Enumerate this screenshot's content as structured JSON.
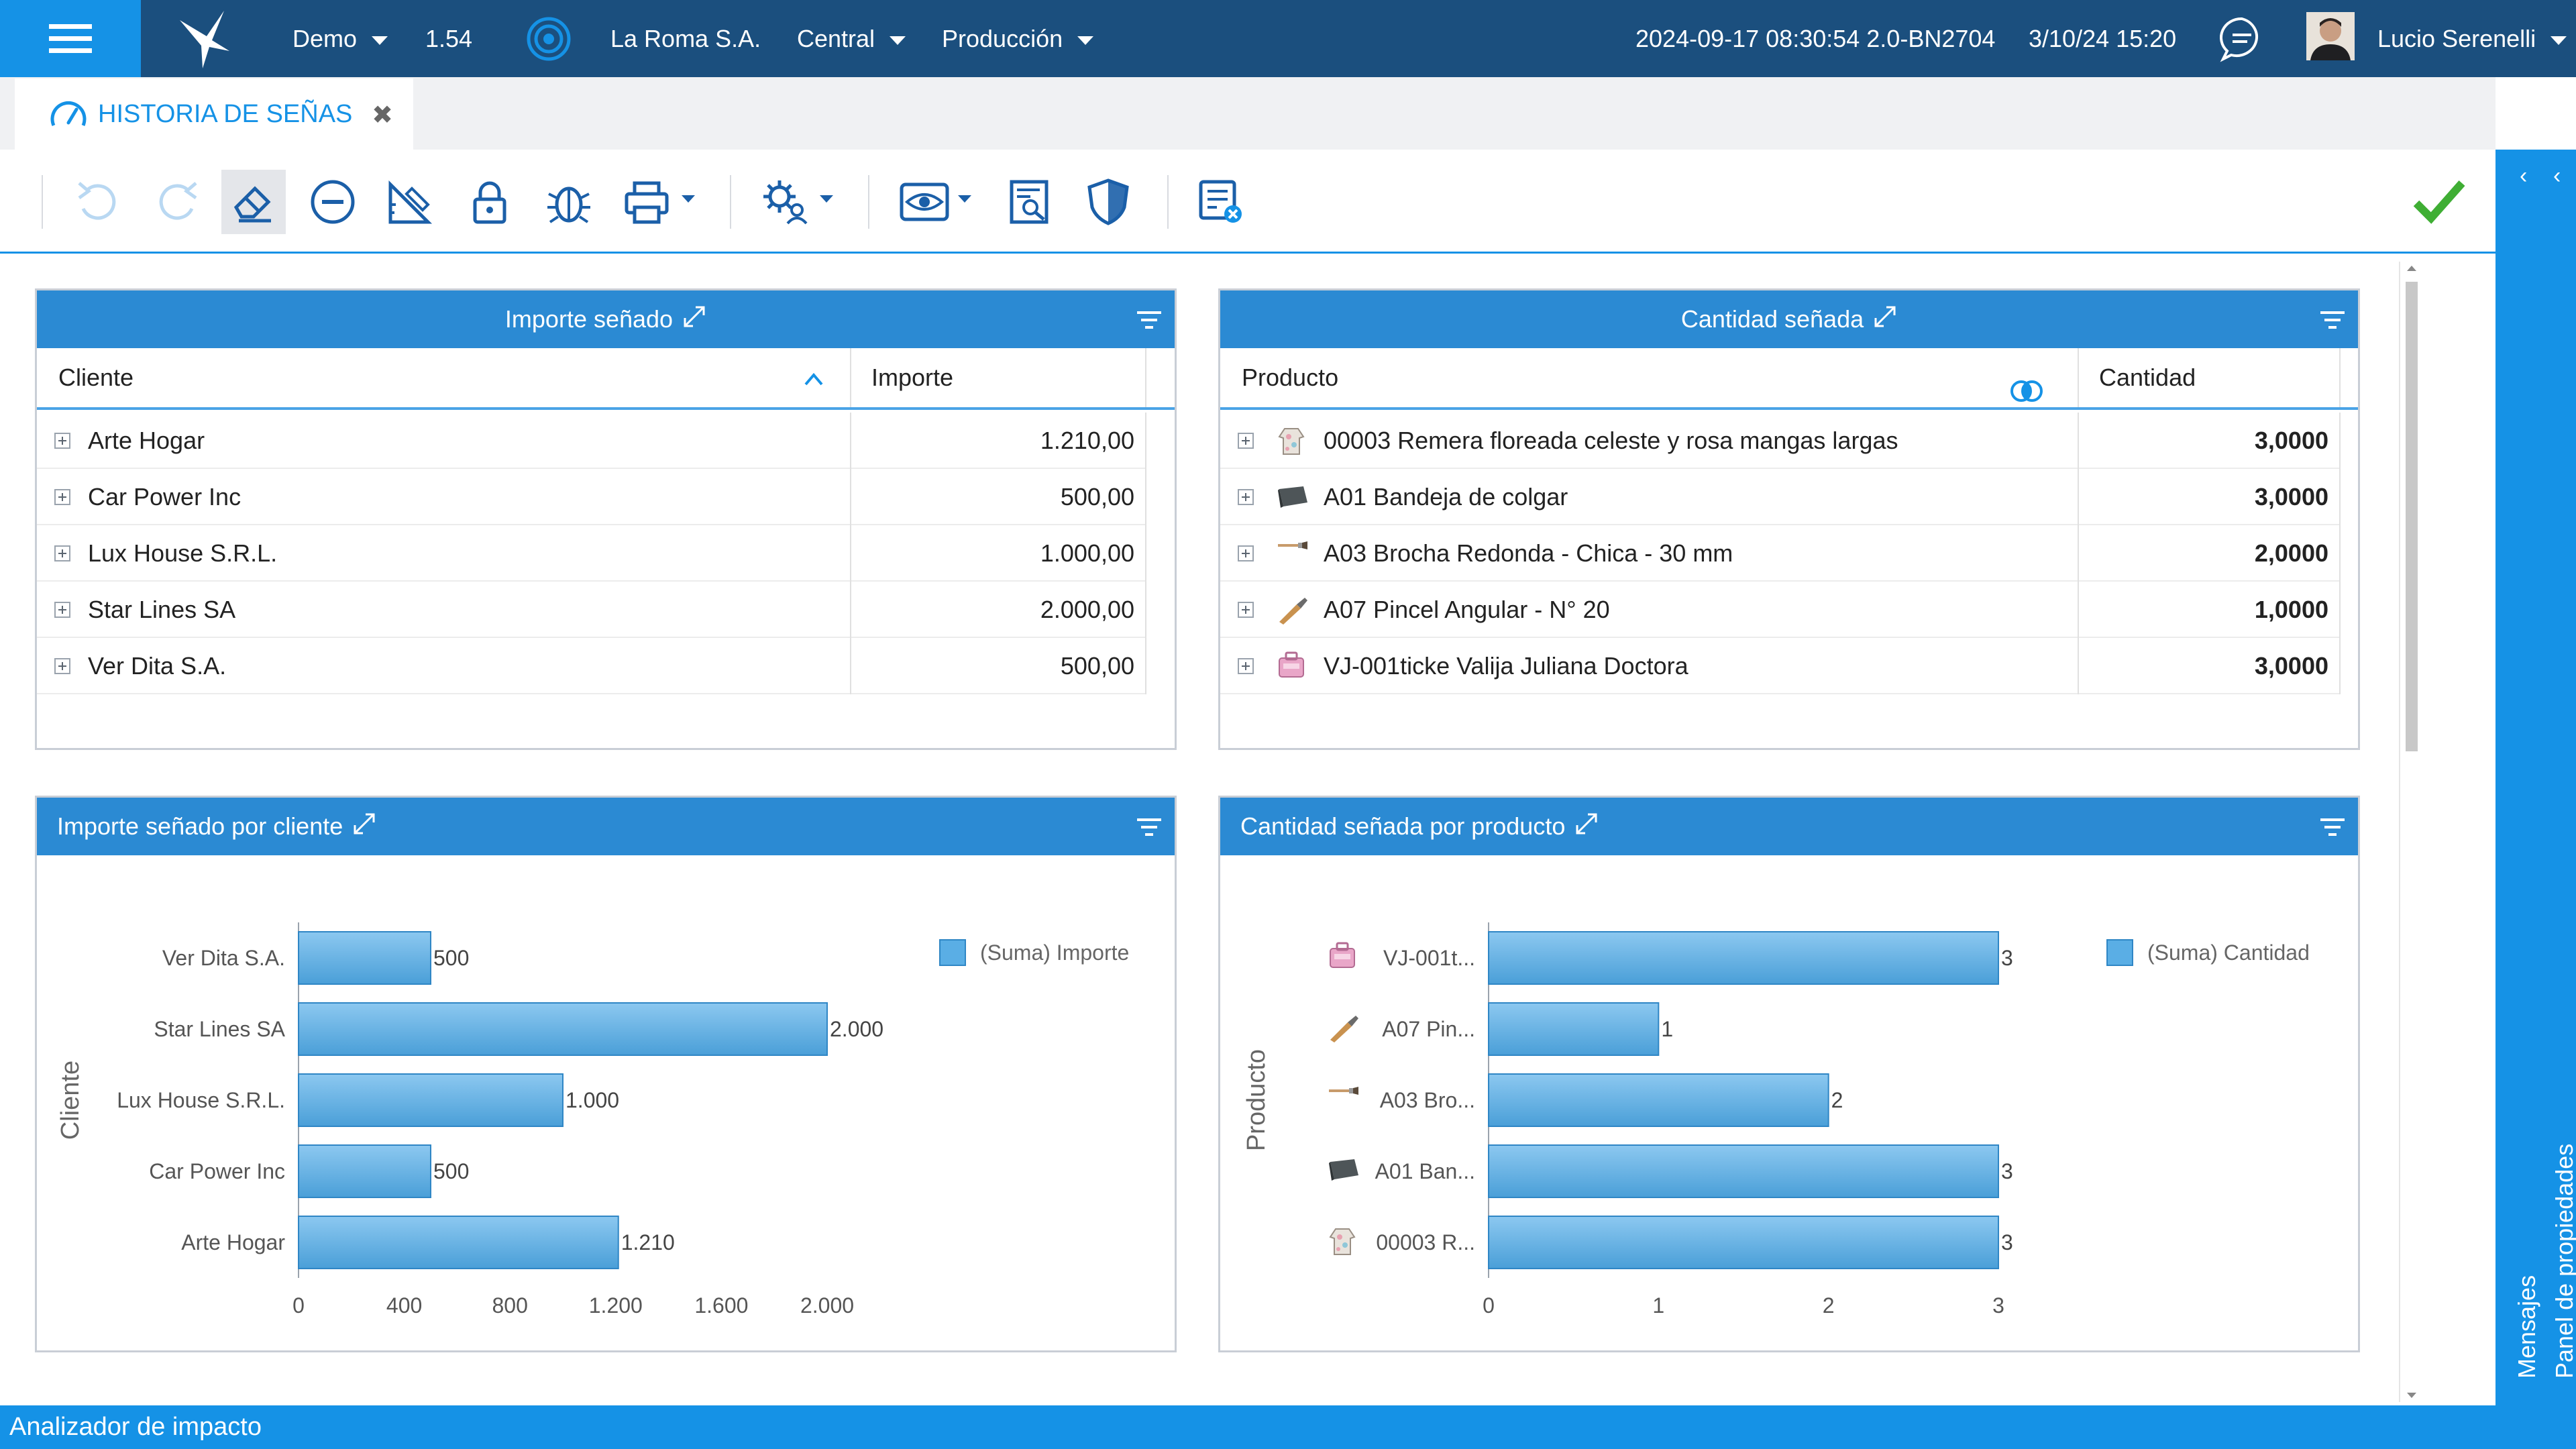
{
  "topbar": {
    "env": "Demo",
    "version": "1.54",
    "company": "La Roma S.A.",
    "branch": "Central",
    "area": "Producción",
    "build": "2024-09-17 08:30:54 2.0-BN2704",
    "datetime": "3/10/24 15:20",
    "user": "Lucio Serenelli"
  },
  "tab": {
    "title": "HISTORIA DE SEÑAS"
  },
  "toolbar": {
    "icons": [
      "undo-icon",
      "redo-icon",
      "eraser-icon",
      "minus-circle-icon",
      "ruler-pencil-icon",
      "lock-icon",
      "bug-icon",
      "printer-icon",
      "gear-people-icon",
      "eye-icon",
      "search-document-icon",
      "shield-icon",
      "list-close-icon",
      "checkmark-icon"
    ],
    "accent": "#1b5fa8"
  },
  "right_panel": {
    "properties_label": "Panel de propiedades",
    "messages_label": "Mensajes"
  },
  "statusbar": {
    "label": "Analizador de impacto"
  },
  "colors": {
    "topbar": "#1b4f7e",
    "accent": "#1592e6",
    "panel_header": "#2b8ad3",
    "bar": "#5aaee5",
    "ok": "#3fae34"
  },
  "importe_table": {
    "title": "Importe señado",
    "columns": [
      "Cliente",
      "Importe"
    ],
    "rows": [
      {
        "cliente": "Arte Hogar",
        "importe": "1.210,00"
      },
      {
        "cliente": "Car Power Inc",
        "importe": "500,00"
      },
      {
        "cliente": "Lux House S.R.L.",
        "importe": "1.000,00"
      },
      {
        "cliente": "Star Lines SA",
        "importe": "2.000,00"
      },
      {
        "cliente": "Ver Dita S.A.",
        "importe": "500,00"
      }
    ]
  },
  "cantidad_table": {
    "title": "Cantidad señada",
    "columns": [
      "Producto",
      "Cantidad"
    ],
    "rows": [
      {
        "producto": "00003 Remera floreada celeste y rosa mangas largas",
        "cantidad": "3,0000"
      },
      {
        "producto": "A01 Bandeja de colgar",
        "cantidad": "3,0000"
      },
      {
        "producto": "A03 Brocha Redonda - Chica - 30 mm",
        "cantidad": "2,0000"
      },
      {
        "producto": "A07 Pincel Angular - N° 20",
        "cantidad": "1,0000"
      },
      {
        "producto": "VJ-001ticke Valija Juliana Doctora",
        "cantidad": "3,0000"
      }
    ]
  },
  "chart_data": [
    {
      "type": "bar",
      "orientation": "horizontal",
      "title": "Importe señado por cliente",
      "ylabel": "Cliente",
      "xlabel": "",
      "categories": [
        "Ver Dita S.A.",
        "Star Lines SA",
        "Lux House S.R.L.",
        "Car Power Inc",
        "Arte Hogar"
      ],
      "series": [
        {
          "name": "(Suma) Importe",
          "values": [
            500,
            2000,
            1000,
            500,
            1210
          ]
        }
      ],
      "data_labels": [
        "500",
        "2.000",
        "1.000",
        "500",
        "1.210"
      ],
      "xlim": [
        0,
        2000
      ],
      "ticks": [
        0,
        400,
        800,
        1200,
        1600,
        2000
      ],
      "tick_labels": [
        "0",
        "400",
        "800",
        "1.200",
        "1.600",
        "2.000"
      ],
      "legend": "top-right",
      "grid": false
    },
    {
      "type": "bar",
      "orientation": "horizontal",
      "title": "Cantidad señada por producto",
      "ylabel": "Producto",
      "xlabel": "",
      "categories": [
        "VJ-001t...",
        "A07 Pin...",
        "A03 Bro...",
        "A01 Ban...",
        "00003 R..."
      ],
      "series": [
        {
          "name": "(Suma) Cantidad",
          "values": [
            3,
            1,
            2,
            3,
            3
          ]
        }
      ],
      "data_labels": [
        "3",
        "1",
        "2",
        "3",
        "3"
      ],
      "xlim": [
        0,
        3
      ],
      "ticks": [
        0,
        1,
        2,
        3
      ],
      "tick_labels": [
        "0",
        "1",
        "2",
        "3"
      ],
      "legend": "top-right",
      "grid": false
    }
  ]
}
